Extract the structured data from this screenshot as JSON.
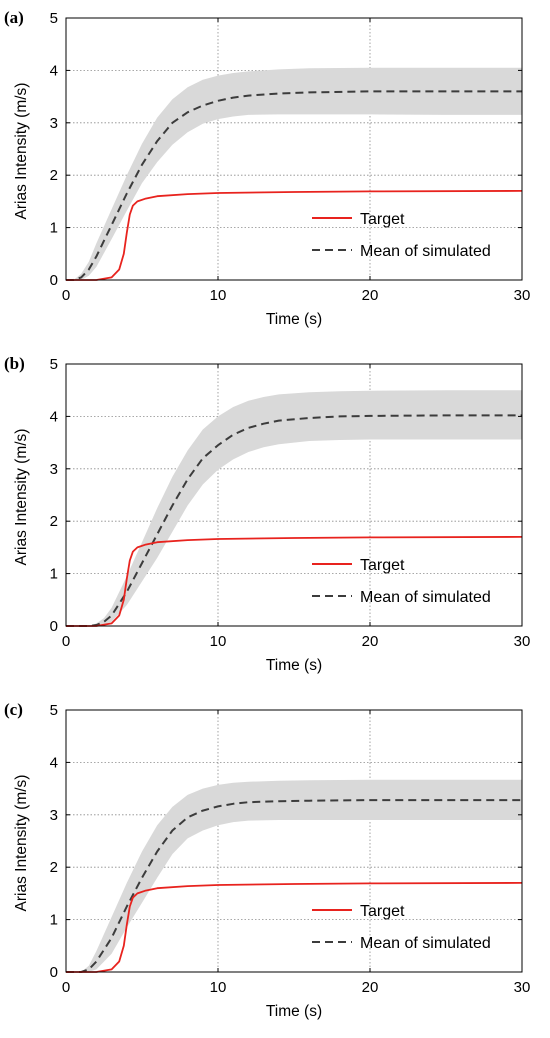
{
  "chart_data": [
    {
      "type": "line",
      "panel_label": "(a)",
      "xlabel": "Time (s)",
      "ylabel": "Arias Intensity (m/s)",
      "xlim": [
        0,
        30
      ],
      "ylim": [
        0,
        5
      ],
      "xticks": [
        0,
        10,
        20,
        30
      ],
      "yticks": [
        0,
        1,
        2,
        3,
        4,
        5
      ],
      "grid": true,
      "legend_position": "bottom-right",
      "legend": [
        "Target",
        "Mean of simulated"
      ],
      "series": [
        {
          "name": "Target",
          "color": "#e8231e",
          "dash": "solid",
          "x": [
            0,
            2,
            3,
            3.5,
            3.8,
            4.0,
            4.2,
            4.4,
            4.7,
            5.2,
            6,
            8,
            10,
            15,
            20,
            30
          ],
          "y": [
            0,
            0,
            0.05,
            0.2,
            0.5,
            0.9,
            1.25,
            1.42,
            1.5,
            1.55,
            1.6,
            1.64,
            1.66,
            1.68,
            1.69,
            1.7
          ]
        },
        {
          "name": "Mean of simulated",
          "color": "#3c3c3c",
          "dash": "dashed",
          "x": [
            0,
            0.5,
            1,
            1.5,
            2,
            3,
            4,
            5,
            6,
            7,
            8,
            9,
            10,
            11,
            12,
            14,
            16,
            20,
            25,
            30
          ],
          "y": [
            0,
            0,
            0.05,
            0.2,
            0.45,
            1.05,
            1.65,
            2.2,
            2.65,
            3.0,
            3.2,
            3.33,
            3.42,
            3.48,
            3.52,
            3.56,
            3.58,
            3.6,
            3.6,
            3.6
          ]
        }
      ],
      "band": {
        "color": "#d9d9d9",
        "x": [
          0,
          0.5,
          1,
          1.5,
          2,
          3,
          4,
          5,
          6,
          7,
          8,
          9,
          10,
          11,
          12,
          14,
          16,
          20,
          25,
          30
        ],
        "upper": [
          0,
          0,
          0.12,
          0.35,
          0.7,
          1.35,
          2.0,
          2.6,
          3.1,
          3.45,
          3.68,
          3.82,
          3.9,
          3.95,
          3.98,
          4.02,
          4.04,
          4.05,
          4.05,
          4.05
        ],
        "lower": [
          0,
          0,
          0,
          0.08,
          0.25,
          0.78,
          1.32,
          1.85,
          2.25,
          2.58,
          2.82,
          2.98,
          3.07,
          3.12,
          3.15,
          3.16,
          3.16,
          3.16,
          3.15,
          3.15
        ]
      }
    },
    {
      "type": "line",
      "panel_label": "(b)",
      "xlabel": "Time (s)",
      "ylabel": "Arias Intensity (m/s)",
      "xlim": [
        0,
        30
      ],
      "ylim": [
        0,
        5
      ],
      "xticks": [
        0,
        10,
        20,
        30
      ],
      "yticks": [
        0,
        1,
        2,
        3,
        4,
        5
      ],
      "grid": true,
      "legend_position": "bottom-right",
      "legend": [
        "Target",
        "Mean of simulated"
      ],
      "series": [
        {
          "name": "Target",
          "color": "#e8231e",
          "dash": "solid",
          "x": [
            0,
            2,
            3,
            3.5,
            3.8,
            4.0,
            4.2,
            4.4,
            4.7,
            5.2,
            6,
            8,
            10,
            15,
            20,
            30
          ],
          "y": [
            0,
            0,
            0.05,
            0.2,
            0.5,
            0.9,
            1.25,
            1.42,
            1.5,
            1.55,
            1.6,
            1.64,
            1.66,
            1.68,
            1.69,
            1.7
          ]
        },
        {
          "name": "Mean of simulated",
          "color": "#3c3c3c",
          "dash": "dashed",
          "x": [
            0,
            1.5,
            2,
            2.5,
            3,
            4,
            5,
            6,
            7,
            8,
            9,
            10,
            11,
            12,
            13,
            14,
            16,
            18,
            20,
            25,
            30
          ],
          "y": [
            0,
            0,
            0.02,
            0.08,
            0.2,
            0.65,
            1.2,
            1.75,
            2.3,
            2.8,
            3.2,
            3.45,
            3.65,
            3.78,
            3.86,
            3.92,
            3.97,
            4.0,
            4.01,
            4.02,
            4.02
          ]
        }
      ],
      "band": {
        "color": "#d9d9d9",
        "x": [
          0,
          1.5,
          2,
          2.5,
          3,
          4,
          5,
          6,
          7,
          8,
          9,
          10,
          11,
          12,
          13,
          14,
          16,
          18,
          20,
          25,
          30
        ],
        "upper": [
          0,
          0,
          0.05,
          0.15,
          0.35,
          0.95,
          1.6,
          2.25,
          2.85,
          3.35,
          3.75,
          4.0,
          4.18,
          4.3,
          4.37,
          4.42,
          4.46,
          4.48,
          4.49,
          4.5,
          4.5
        ],
        "lower": [
          0,
          0,
          0,
          0.02,
          0.08,
          0.4,
          0.85,
          1.3,
          1.8,
          2.3,
          2.7,
          2.98,
          3.18,
          3.32,
          3.41,
          3.47,
          3.53,
          3.55,
          3.56,
          3.56,
          3.56
        ]
      }
    },
    {
      "type": "line",
      "panel_label": "(c)",
      "xlabel": "Time (s)",
      "ylabel": "Arias Intensity (m/s)",
      "xlim": [
        0,
        30
      ],
      "ylim": [
        0,
        5
      ],
      "xticks": [
        0,
        10,
        20,
        30
      ],
      "yticks": [
        0,
        1,
        2,
        3,
        4,
        5
      ],
      "grid": true,
      "legend_position": "bottom-right",
      "legend": [
        "Target",
        "Mean of simulated"
      ],
      "series": [
        {
          "name": "Target",
          "color": "#e8231e",
          "dash": "solid",
          "x": [
            0,
            2,
            3,
            3.5,
            3.8,
            4.0,
            4.2,
            4.4,
            4.7,
            5.2,
            6,
            8,
            10,
            15,
            20,
            30
          ],
          "y": [
            0,
            0,
            0.05,
            0.2,
            0.5,
            0.9,
            1.25,
            1.42,
            1.5,
            1.55,
            1.6,
            1.64,
            1.66,
            1.68,
            1.69,
            1.7
          ]
        },
        {
          "name": "Mean of simulated",
          "color": "#3c3c3c",
          "dash": "dashed",
          "x": [
            0,
            1,
            1.5,
            2,
            3,
            4,
            5,
            6,
            7,
            8,
            9,
            10,
            11,
            12,
            14,
            16,
            20,
            25,
            30
          ],
          "y": [
            0,
            0,
            0.05,
            0.2,
            0.65,
            1.25,
            1.8,
            2.3,
            2.7,
            2.95,
            3.08,
            3.16,
            3.21,
            3.24,
            3.26,
            3.27,
            3.28,
            3.28,
            3.28
          ]
        }
      ],
      "band": {
        "color": "#d9d9d9",
        "x": [
          0,
          1,
          1.5,
          2,
          3,
          4,
          5,
          6,
          7,
          8,
          9,
          10,
          11,
          12,
          14,
          16,
          20,
          25,
          30
        ],
        "upper": [
          0,
          0,
          0.12,
          0.4,
          1.05,
          1.7,
          2.3,
          2.8,
          3.15,
          3.38,
          3.5,
          3.57,
          3.61,
          3.63,
          3.65,
          3.66,
          3.67,
          3.67,
          3.67
        ],
        "lower": [
          0,
          0,
          0,
          0.05,
          0.35,
          0.85,
          1.32,
          1.8,
          2.25,
          2.55,
          2.7,
          2.8,
          2.86,
          2.89,
          2.9,
          2.9,
          2.9,
          2.9,
          2.9
        ]
      }
    }
  ]
}
